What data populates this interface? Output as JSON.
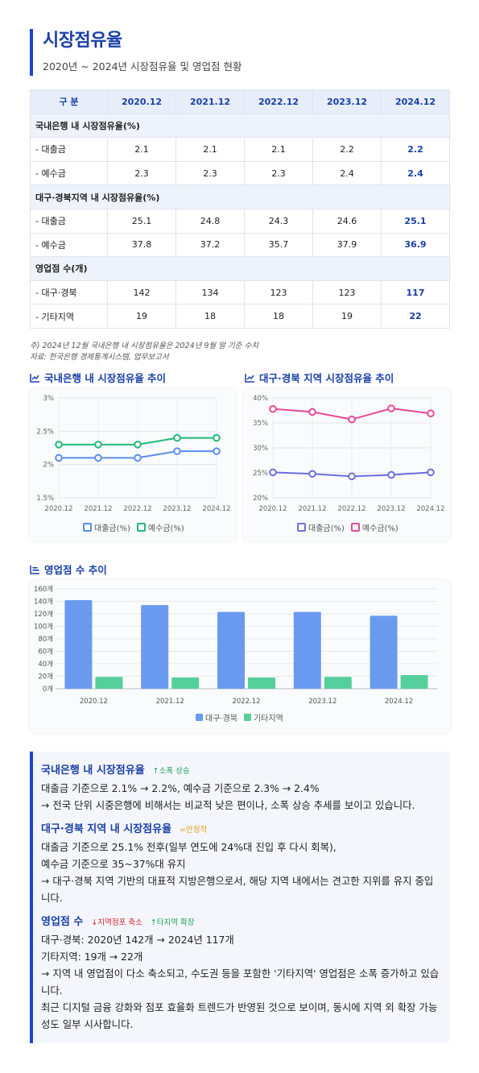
{
  "page": {
    "title": "시장점유율",
    "subtitle": "2020년 ~ 2024년 시장점유율 및 영업점 현황"
  },
  "table": {
    "header": [
      "구 분",
      "2020.12",
      "2021.12",
      "2022.12",
      "2023.12",
      "2024.12"
    ],
    "sections": [
      {
        "title": "국내은행 내 시장점유율(%)",
        "rows": [
          {
            "label": "- 대출금",
            "values": [
              "2.1",
              "2.1",
              "2.1",
              "2.2",
              "2.2"
            ]
          },
          {
            "label": "- 예수금",
            "values": [
              "2.3",
              "2.3",
              "2.3",
              "2.4",
              "2.4"
            ]
          }
        ]
      },
      {
        "title": "대구·경북지역 내 시장점유율(%)",
        "rows": [
          {
            "label": "- 대출금",
            "values": [
              "25.1",
              "24.8",
              "24.3",
              "24.6",
              "25.1"
            ]
          },
          {
            "label": "- 예수금",
            "values": [
              "37.8",
              "37.2",
              "35.7",
              "37.9",
              "36.9"
            ]
          }
        ]
      },
      {
        "title": "영업점 수(개)",
        "rows": [
          {
            "label": "- 대구·경북",
            "values": [
              "142",
              "134",
              "123",
              "123",
              "117"
            ]
          },
          {
            "label": "- 기타지역",
            "values": [
              "19",
              "18",
              "18",
              "19",
              "22"
            ]
          }
        ]
      }
    ]
  },
  "notes": {
    "line1": "주) 2024년 12월 국내은행 내 시장점유율은 2024년 9월 말 기준 수치",
    "line2": "자료: 한국은행 경제통계시스템, 업무보고서"
  },
  "chart_titles": {
    "national": "국내은행 내 시장점유율 추이",
    "regional": "대구·경북 지역 시장점유율 추이",
    "branches": "영업점 수 추이"
  },
  "chart_data": [
    {
      "type": "line",
      "title": "국내은행 내 시장점유율 추이",
      "x": [
        "2020.12",
        "2021.12",
        "2022.12",
        "2023.12",
        "2024.12"
      ],
      "ylim": [
        1.5,
        3
      ],
      "yticks": [
        "1.5%",
        "2%",
        "2.5%",
        "3%"
      ],
      "ytick_values": [
        1.5,
        2,
        2.5,
        3
      ],
      "grid": true,
      "legend": "bottom",
      "series": [
        {
          "name": "대출금(%)",
          "values": [
            2.1,
            2.1,
            2.1,
            2.2,
            2.2
          ],
          "color": "#5b8def"
        },
        {
          "name": "예수금(%)",
          "values": [
            2.3,
            2.3,
            2.3,
            2.4,
            2.4
          ],
          "color": "#21b878"
        }
      ]
    },
    {
      "type": "line",
      "title": "대구·경북 지역 시장점유율 추이",
      "x": [
        "2020.12",
        "2021.12",
        "2022.12",
        "2023.12",
        "2024.12"
      ],
      "ylim": [
        20,
        40
      ],
      "yticks": [
        "20%",
        "25%",
        "30%",
        "35%",
        "40%"
      ],
      "ytick_values": [
        20,
        25,
        30,
        35,
        40
      ],
      "grid": true,
      "legend": "bottom",
      "series": [
        {
          "name": "대출금(%)",
          "values": [
            25.1,
            24.8,
            24.3,
            24.6,
            25.1
          ],
          "color": "#6b6fe0"
        },
        {
          "name": "예수금(%)",
          "values": [
            37.8,
            37.2,
            35.7,
            37.9,
            36.9
          ],
          "color": "#e8489a"
        }
      ]
    },
    {
      "type": "bar",
      "title": "영업점 수 추이",
      "categories": [
        "2020.12",
        "2021.12",
        "2022.12",
        "2023.12",
        "2024.12"
      ],
      "ylim": [
        0,
        160
      ],
      "yticks": [
        "0개",
        "20개",
        "40개",
        "60개",
        "80개",
        "100개",
        "120개",
        "140개",
        "160개"
      ],
      "ytick_values": [
        0,
        20,
        40,
        60,
        80,
        100,
        120,
        140,
        160
      ],
      "grid": true,
      "legend": "bottom",
      "series": [
        {
          "name": "대구·경북",
          "values": [
            142,
            134,
            123,
            123,
            117
          ],
          "color": "#6a9af0"
        },
        {
          "name": "기타지역",
          "values": [
            19,
            18,
            18,
            19,
            22
          ],
          "color": "#55cf9c"
        }
      ]
    }
  ],
  "summary": [
    {
      "title": "국내은행 내 시장점유율",
      "tags": [
        {
          "text": "소폭 상승",
          "kind": "up",
          "icon": "arrow-up-icon"
        }
      ],
      "lines": [
        "대출금 기준으로 2.1% → 2.2%, 예수금 기준으로 2.3% → 2.4%",
        "→ 전국 단위 시중은행에 비해서는 비교적 낮은 편이나, 소폭 상승 추세를 보이고 있습니다."
      ]
    },
    {
      "title": "대구·경북 지역 내 시장점유율",
      "tags": [
        {
          "text": "안정적",
          "kind": "stable",
          "icon": "equals-icon"
        }
      ],
      "lines": [
        "대출금 기준으로 25.1% 전후(일부 연도에 24%대 진입 후 다시 회복),",
        "예수금 기준으로 35~37%대 유지",
        "→ 대구·경북 지역 기반의 대표적 지방은행으로서, 해당 지역 내에서는 견고한 지위를 유지 중입니다."
      ]
    },
    {
      "title": "영업점 수",
      "tags": [
        {
          "text": "지역점포 축소",
          "kind": "down",
          "icon": "arrow-down-icon"
        },
        {
          "text": "타지역 확장",
          "kind": "up",
          "icon": "arrow-up-icon"
        }
      ],
      "lines": [
        "대구·경북: 2020년 142개 → 2024년 117개",
        "기타지역: 19개 → 22개",
        "→ 지역 내 영업점이 다소 축소되고, 수도권 등을 포함한 '기타지역' 영업점은 소폭 증가하고 있습니다.",
        "최근 디지털 금융 강화와 점포 효율화 트렌드가 반영된 것으로 보이며, 동시에 지역 외 확장 가능성도 일부 시사합니다."
      ]
    }
  ]
}
